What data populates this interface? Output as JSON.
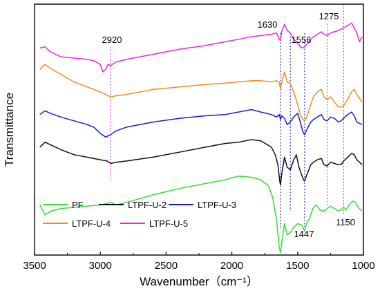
{
  "chart_data": {
    "type": "line",
    "title": "",
    "xlabel": "Wavenumber（cm⁻¹）",
    "ylabel": "Transmittance",
    "xlim": [
      3500,
      1000
    ],
    "x_reversed": true,
    "ylim": [
      0,
      10
    ],
    "y_ticks_shown": false,
    "grid": false,
    "legend_position": "bottom-left",
    "x_ticks": [
      3500,
      3000,
      2500,
      2000,
      1500,
      1000
    ],
    "x_tick_labels": [
      "3500",
      "3000",
      "2500",
      "2000",
      "1500",
      "1000"
    ],
    "annotations": [
      {
        "text": "2920",
        "x": 2920
      },
      {
        "text": "1630",
        "x": 1630
      },
      {
        "text": "1556",
        "x": 1556
      },
      {
        "text": "1275",
        "x": 1275
      },
      {
        "text": "1447",
        "x": 1447
      },
      {
        "text": "1150",
        "x": 1150
      }
    ],
    "reference_lines_x": [
      2920,
      1630,
      1556,
      1447,
      1275,
      1150
    ],
    "series": [
      {
        "name": "PF",
        "color": "#33dd33",
        "points": [
          [
            3460,
            2.0
          ],
          [
            3420,
            1.6
          ],
          [
            3380,
            1.75
          ],
          [
            3300,
            1.85
          ],
          [
            3200,
            1.9
          ],
          [
            3100,
            1.95
          ],
          [
            3000,
            2.0
          ],
          [
            2950,
            2.05
          ],
          [
            2920,
            2.1
          ],
          [
            2880,
            2.0
          ],
          [
            2800,
            2.1
          ],
          [
            2600,
            2.4
          ],
          [
            2400,
            2.65
          ],
          [
            2200,
            2.85
          ],
          [
            2050,
            3.0
          ],
          [
            1950,
            3.15
          ],
          [
            1850,
            3.1
          ],
          [
            1780,
            3.0
          ],
          [
            1720,
            2.75
          ],
          [
            1690,
            2.3
          ],
          [
            1660,
            1.4
          ],
          [
            1640,
            0.3
          ],
          [
            1630,
            0.1
          ],
          [
            1622,
            0.45
          ],
          [
            1600,
            1.25
          ],
          [
            1580,
            0.8
          ],
          [
            1556,
            0.9
          ],
          [
            1530,
            1.1
          ],
          [
            1500,
            1.25
          ],
          [
            1470,
            1.2
          ],
          [
            1455,
            1.05
          ],
          [
            1447,
            0.95
          ],
          [
            1430,
            1.3
          ],
          [
            1410,
            1.45
          ],
          [
            1385,
            1.85
          ],
          [
            1360,
            2.0
          ],
          [
            1330,
            1.8
          ],
          [
            1300,
            1.75
          ],
          [
            1275,
            1.85
          ],
          [
            1250,
            1.95
          ],
          [
            1220,
            1.85
          ],
          [
            1190,
            1.75
          ],
          [
            1170,
            1.8
          ],
          [
            1150,
            1.9
          ],
          [
            1130,
            1.8
          ],
          [
            1110,
            2.0
          ],
          [
            1080,
            2.15
          ],
          [
            1060,
            2.1
          ],
          [
            1040,
            1.9
          ],
          [
            1010,
            1.75
          ]
        ]
      },
      {
        "name": "LTPF-U-2",
        "color": "#111111",
        "points": [
          [
            3460,
            4.3
          ],
          [
            3420,
            4.5
          ],
          [
            3380,
            4.4
          ],
          [
            3300,
            4.2
          ],
          [
            3200,
            4.0
          ],
          [
            3100,
            3.9
          ],
          [
            3000,
            3.8
          ],
          [
            2950,
            3.75
          ],
          [
            2920,
            3.65
          ],
          [
            2880,
            3.7
          ],
          [
            2800,
            3.75
          ],
          [
            2600,
            3.9
          ],
          [
            2400,
            4.1
          ],
          [
            2200,
            4.3
          ],
          [
            2050,
            4.45
          ],
          [
            1950,
            4.5
          ],
          [
            1850,
            4.6
          ],
          [
            1780,
            4.55
          ],
          [
            1700,
            4.3
          ],
          [
            1670,
            4.0
          ],
          [
            1650,
            3.6
          ],
          [
            1635,
            2.9
          ],
          [
            1630,
            2.8
          ],
          [
            1622,
            3.2
          ],
          [
            1600,
            3.9
          ],
          [
            1580,
            3.5
          ],
          [
            1556,
            3.4
          ],
          [
            1530,
            3.8
          ],
          [
            1510,
            4.0
          ],
          [
            1490,
            3.5
          ],
          [
            1470,
            3.2
          ],
          [
            1455,
            3.0
          ],
          [
            1447,
            2.95
          ],
          [
            1430,
            3.2
          ],
          [
            1400,
            3.6
          ],
          [
            1380,
            3.7
          ],
          [
            1350,
            3.8
          ],
          [
            1320,
            3.85
          ],
          [
            1300,
            3.6
          ],
          [
            1275,
            3.55
          ],
          [
            1250,
            3.7
          ],
          [
            1220,
            3.65
          ],
          [
            1190,
            3.6
          ],
          [
            1170,
            3.6
          ],
          [
            1150,
            3.75
          ],
          [
            1120,
            3.9
          ],
          [
            1090,
            4.05
          ],
          [
            1070,
            4.0
          ],
          [
            1050,
            3.8
          ],
          [
            1010,
            3.6
          ]
        ]
      },
      {
        "name": "LTPF-U-3",
        "color": "#1a1ad6",
        "points": [
          [
            3460,
            5.6
          ],
          [
            3420,
            5.75
          ],
          [
            3380,
            5.65
          ],
          [
            3300,
            5.5
          ],
          [
            3200,
            5.35
          ],
          [
            3100,
            5.2
          ],
          [
            3050,
            5.1
          ],
          [
            3000,
            4.85
          ],
          [
            2960,
            4.7
          ],
          [
            2940,
            4.75
          ],
          [
            2920,
            4.8
          ],
          [
            2880,
            4.95
          ],
          [
            2800,
            5.1
          ],
          [
            2600,
            5.3
          ],
          [
            2400,
            5.45
          ],
          [
            2200,
            5.55
          ],
          [
            2050,
            5.6
          ],
          [
            1950,
            5.7
          ],
          [
            1850,
            5.8
          ],
          [
            1780,
            5.7
          ],
          [
            1700,
            5.6
          ],
          [
            1660,
            5.5
          ],
          [
            1640,
            5.6
          ],
          [
            1630,
            5.4
          ],
          [
            1622,
            5.55
          ],
          [
            1600,
            5.45
          ],
          [
            1580,
            5.2
          ],
          [
            1556,
            5.3
          ],
          [
            1530,
            5.5
          ],
          [
            1500,
            5.65
          ],
          [
            1480,
            5.3
          ],
          [
            1460,
            4.9
          ],
          [
            1447,
            4.8
          ],
          [
            1430,
            5.0
          ],
          [
            1400,
            5.3
          ],
          [
            1380,
            5.4
          ],
          [
            1350,
            5.5
          ],
          [
            1320,
            5.6
          ],
          [
            1300,
            5.4
          ],
          [
            1275,
            5.35
          ],
          [
            1250,
            5.5
          ],
          [
            1220,
            5.45
          ],
          [
            1190,
            5.3
          ],
          [
            1170,
            5.35
          ],
          [
            1150,
            5.45
          ],
          [
            1120,
            5.6
          ],
          [
            1090,
            5.7
          ],
          [
            1070,
            5.55
          ],
          [
            1050,
            5.3
          ],
          [
            1010,
            5.2
          ]
        ]
      },
      {
        "name": "LTPF-U-4",
        "color": "#f08c1c",
        "points": [
          [
            3460,
            7.4
          ],
          [
            3420,
            7.6
          ],
          [
            3380,
            7.45
          ],
          [
            3300,
            7.2
          ],
          [
            3200,
            6.9
          ],
          [
            3100,
            6.7
          ],
          [
            3000,
            6.5
          ],
          [
            2960,
            6.4
          ],
          [
            2940,
            6.35
          ],
          [
            2920,
            6.3
          ],
          [
            2880,
            6.35
          ],
          [
            2800,
            6.4
          ],
          [
            2600,
            6.6
          ],
          [
            2400,
            6.7
          ],
          [
            2200,
            6.8
          ],
          [
            2050,
            6.85
          ],
          [
            1950,
            6.9
          ],
          [
            1850,
            6.95
          ],
          [
            1780,
            6.95
          ],
          [
            1700,
            6.9
          ],
          [
            1660,
            6.95
          ],
          [
            1640,
            6.9
          ],
          [
            1630,
            6.6
          ],
          [
            1622,
            6.85
          ],
          [
            1600,
            7.3
          ],
          [
            1580,
            6.9
          ],
          [
            1556,
            6.85
          ],
          [
            1530,
            6.5
          ],
          [
            1500,
            6.0
          ],
          [
            1480,
            5.6
          ],
          [
            1460,
            5.4
          ],
          [
            1447,
            5.35
          ],
          [
            1430,
            5.5
          ],
          [
            1400,
            6.0
          ],
          [
            1380,
            6.3
          ],
          [
            1350,
            6.5
          ],
          [
            1320,
            6.6
          ],
          [
            1300,
            6.3
          ],
          [
            1275,
            6.2
          ],
          [
            1250,
            6.3
          ],
          [
            1220,
            6.1
          ],
          [
            1190,
            5.9
          ],
          [
            1170,
            5.9
          ],
          [
            1150,
            5.95
          ],
          [
            1120,
            6.2
          ],
          [
            1090,
            6.5
          ],
          [
            1070,
            6.6
          ],
          [
            1050,
            6.4
          ],
          [
            1010,
            6.1
          ]
        ]
      },
      {
        "name": "LTPF-U-5",
        "color": "#e627e6",
        "points": [
          [
            3460,
            8.25
          ],
          [
            3420,
            8.3
          ],
          [
            3380,
            8.1
          ],
          [
            3300,
            7.9
          ],
          [
            3200,
            7.85
          ],
          [
            3100,
            7.8
          ],
          [
            3050,
            7.75
          ],
          [
            3000,
            7.6
          ],
          [
            2980,
            7.3
          ],
          [
            2960,
            7.4
          ],
          [
            2940,
            7.6
          ],
          [
            2920,
            7.55
          ],
          [
            2880,
            7.7
          ],
          [
            2800,
            7.8
          ],
          [
            2600,
            8.0
          ],
          [
            2400,
            8.2
          ],
          [
            2200,
            8.35
          ],
          [
            2050,
            8.5
          ],
          [
            1950,
            8.6
          ],
          [
            1850,
            8.7
          ],
          [
            1780,
            8.75
          ],
          [
            1700,
            8.8
          ],
          [
            1660,
            8.85
          ],
          [
            1640,
            8.6
          ],
          [
            1630,
            8.55
          ],
          [
            1622,
            8.9
          ],
          [
            1600,
            9.2
          ],
          [
            1580,
            8.95
          ],
          [
            1556,
            8.85
          ],
          [
            1530,
            8.6
          ],
          [
            1500,
            8.45
          ],
          [
            1480,
            8.3
          ],
          [
            1460,
            8.25
          ],
          [
            1447,
            8.3
          ],
          [
            1430,
            8.4
          ],
          [
            1400,
            8.6
          ],
          [
            1380,
            8.7
          ],
          [
            1350,
            8.8
          ],
          [
            1320,
            8.9
          ],
          [
            1300,
            8.8
          ],
          [
            1275,
            8.75
          ],
          [
            1250,
            8.85
          ],
          [
            1220,
            8.9
          ],
          [
            1190,
            8.95
          ],
          [
            1170,
            9.0
          ],
          [
            1150,
            9.05
          ],
          [
            1120,
            9.15
          ],
          [
            1090,
            9.25
          ],
          [
            1070,
            9.05
          ],
          [
            1050,
            8.85
          ],
          [
            1030,
            8.5
          ],
          [
            1010,
            8.7
          ]
        ]
      }
    ]
  }
}
